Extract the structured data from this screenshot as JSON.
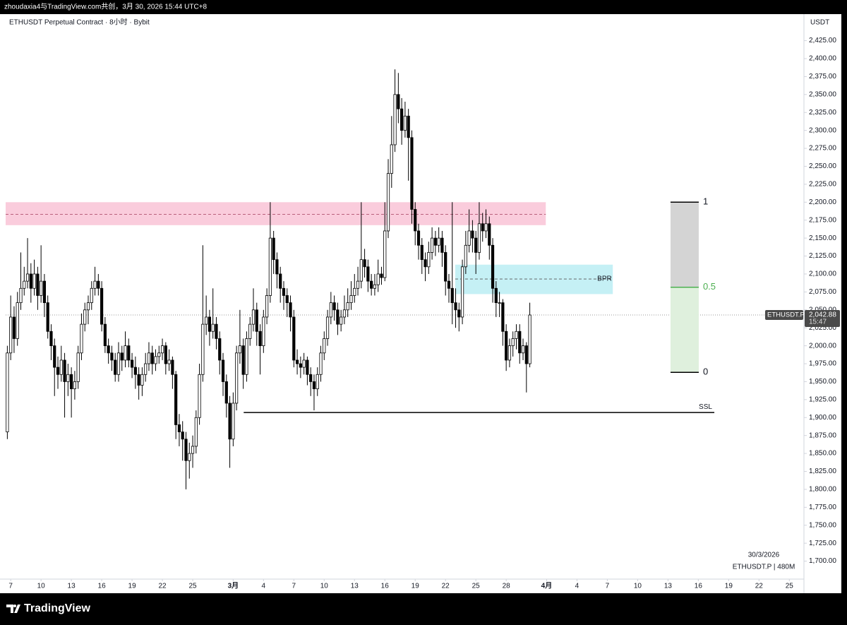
{
  "header": {
    "caption": "zhoudaxia4与TradingView.com共创，3月 30, 2026 15:44 UTC+8",
    "symbol_line": "ETHUSDT Perpetual Contract · 8小时 · Bybit",
    "currency": "USDT"
  },
  "footer": {
    "date": "30/3/2026",
    "info": "ETHUSDT.P | 480M",
    "brand": "TradingView"
  },
  "chart_data": {
    "type": "candlestick",
    "up_color": "#ffffff",
    "down_color": "#000000",
    "border_color": "#000000",
    "ylim": [
      1675,
      2460
    ],
    "xlim": [
      -12,
      1881
    ],
    "yticks": [
      {
        "value": 2425,
        "label": "2,425.00"
      },
      {
        "value": 2400,
        "label": "2,400.00"
      },
      {
        "value": 2375,
        "label": "2,375.00"
      },
      {
        "value": 2350,
        "label": "2,350.00"
      },
      {
        "value": 2325,
        "label": "2,325.00"
      },
      {
        "value": 2300,
        "label": "2,300.00"
      },
      {
        "value": 2275,
        "label": "2,275.00"
      },
      {
        "value": 2250,
        "label": "2,250.00"
      },
      {
        "value": 2225,
        "label": "2,225.00"
      },
      {
        "value": 2200,
        "label": "2,200.00"
      },
      {
        "value": 2175,
        "label": "2,175.00"
      },
      {
        "value": 2150,
        "label": "2,150.00"
      },
      {
        "value": 2125,
        "label": "2,125.00"
      },
      {
        "value": 2100,
        "label": "2,100.00"
      },
      {
        "value": 2075,
        "label": "2,075.00"
      },
      {
        "value": 2050,
        "label": "2,050.00"
      },
      {
        "value": 2025,
        "label": "2,025.00"
      },
      {
        "value": 2000,
        "label": "2,000.00"
      },
      {
        "value": 1975,
        "label": "1,975.00"
      },
      {
        "value": 1950,
        "label": "1,950.00"
      },
      {
        "value": 1925,
        "label": "1,925.00"
      },
      {
        "value": 1900,
        "label": "1,900.00"
      },
      {
        "value": 1875,
        "label": "1,875.00"
      },
      {
        "value": 1850,
        "label": "1,850.00"
      },
      {
        "value": 1825,
        "label": "1,825.00"
      },
      {
        "value": 1800,
        "label": "1,800.00"
      },
      {
        "value": 1775,
        "label": "1,775.00"
      },
      {
        "value": 1750,
        "label": "1,750.00"
      },
      {
        "value": 1725,
        "label": "1,725.00"
      },
      {
        "value": 1700,
        "label": "1,700.00"
      }
    ],
    "xticks": [
      {
        "value": 0,
        "label": "7"
      },
      {
        "value": 72,
        "label": "10"
      },
      {
        "value": 144,
        "label": "13"
      },
      {
        "value": 216,
        "label": "16"
      },
      {
        "value": 288,
        "label": "19"
      },
      {
        "value": 360,
        "label": "22"
      },
      {
        "value": 432,
        "label": "25"
      },
      {
        "value": 528,
        "label": "3月",
        "bold": true
      },
      {
        "value": 600,
        "label": "4"
      },
      {
        "value": 672,
        "label": "7"
      },
      {
        "value": 744,
        "label": "10"
      },
      {
        "value": 816,
        "label": "13"
      },
      {
        "value": 888,
        "label": "16"
      },
      {
        "value": 960,
        "label": "19"
      },
      {
        "value": 1032,
        "label": "22"
      },
      {
        "value": 1104,
        "label": "25"
      },
      {
        "value": 1176,
        "label": "28"
      },
      {
        "value": 1272,
        "label": "4月",
        "bold": true
      },
      {
        "value": 1344,
        "label": "4"
      },
      {
        "value": 1416,
        "label": "7"
      },
      {
        "value": 1488,
        "label": "10"
      },
      {
        "value": 1560,
        "label": "13"
      },
      {
        "value": 1632,
        "label": "16"
      },
      {
        "value": 1704,
        "label": "19"
      },
      {
        "value": 1776,
        "label": "22"
      },
      {
        "value": 1848,
        "label": "25"
      }
    ],
    "x": [
      -8,
      0,
      8,
      16,
      24,
      32,
      40,
      48,
      56,
      64,
      72,
      80,
      88,
      96,
      104,
      112,
      120,
      128,
      136,
      144,
      152,
      160,
      168,
      176,
      184,
      192,
      200,
      208,
      216,
      224,
      232,
      240,
      248,
      256,
      264,
      272,
      280,
      288,
      296,
      304,
      312,
      320,
      328,
      336,
      344,
      352,
      360,
      368,
      376,
      384,
      392,
      400,
      408,
      416,
      424,
      432,
      440,
      448,
      456,
      464,
      472,
      480,
      488,
      496,
      504,
      512,
      520,
      528,
      536,
      544,
      552,
      560,
      568,
      576,
      584,
      592,
      600,
      608,
      616,
      624,
      632,
      640,
      648,
      656,
      664,
      672,
      680,
      688,
      696,
      704,
      712,
      720,
      728,
      736,
      744,
      752,
      760,
      768,
      776,
      784,
      792,
      800,
      808,
      816,
      824,
      832,
      840,
      848,
      856,
      864,
      872,
      880,
      888,
      896,
      904,
      912,
      920,
      928,
      936,
      944,
      952,
      960,
      968,
      976,
      984,
      992,
      1000,
      1008,
      1016,
      1024,
      1032,
      1040,
      1048,
      1056,
      1064,
      1072,
      1080,
      1088,
      1096,
      1104,
      1112,
      1120,
      1128,
      1136,
      1144,
      1152,
      1160,
      1168,
      1176,
      1184,
      1192,
      1200,
      1208,
      1216,
      1224,
      1232
    ],
    "ohlc": [
      [
        1880,
        2000,
        1870,
        1990
      ],
      [
        1990,
        2070,
        1980,
        2040
      ],
      [
        2040,
        2055,
        1990,
        2010
      ],
      [
        2010,
        2075,
        2000,
        2060
      ],
      [
        2060,
        2130,
        2050,
        2080
      ],
      [
        2080,
        2110,
        2070,
        2090
      ],
      [
        2090,
        2150,
        2080,
        2100
      ],
      [
        2100,
        2115,
        2060,
        2080
      ],
      [
        2080,
        2120,
        2070,
        2100
      ],
      [
        2100,
        2110,
        2050,
        2070
      ],
      [
        2070,
        2140,
        2060,
        2090
      ],
      [
        2090,
        2100,
        2040,
        2060
      ],
      [
        2060,
        2070,
        2010,
        2020
      ],
      [
        2020,
        2030,
        1980,
        2000
      ],
      [
        2000,
        2010,
        1930,
        1970
      ],
      [
        1970,
        1985,
        1940,
        1960
      ],
      [
        1960,
        2000,
        1950,
        1980
      ],
      [
        1980,
        1990,
        1900,
        1950
      ],
      [
        1950,
        1975,
        1930,
        1960
      ],
      [
        1960,
        1970,
        1900,
        1940
      ],
      [
        1940,
        1965,
        1925,
        1950
      ],
      [
        1950,
        2000,
        1940,
        1990
      ],
      [
        1990,
        2045,
        1980,
        2030
      ],
      [
        2030,
        2060,
        2020,
        2050
      ],
      [
        2050,
        2070,
        2030,
        2060
      ],
      [
        2060,
        2090,
        2050,
        2080
      ],
      [
        2080,
        2110,
        2070,
        2090
      ],
      [
        2090,
        2100,
        2070,
        2080
      ],
      [
        2080,
        2090,
        2020,
        2030
      ],
      [
        2030,
        2040,
        1990,
        2000
      ],
      [
        2000,
        2010,
        1975,
        1990
      ],
      [
        1990,
        2000,
        1965,
        1980
      ],
      [
        1980,
        1990,
        1950,
        1960
      ],
      [
        1960,
        2005,
        1950,
        1990
      ],
      [
        1990,
        2000,
        1965,
        1980
      ],
      [
        1980,
        2020,
        1970,
        2000
      ],
      [
        2000,
        2010,
        1970,
        1980
      ],
      [
        1980,
        1990,
        1955,
        1970
      ],
      [
        1970,
        1985,
        1940,
        1960
      ],
      [
        1960,
        1970,
        1925,
        1945
      ],
      [
        1945,
        1970,
        1930,
        1960
      ],
      [
        1960,
        1990,
        1950,
        1975
      ],
      [
        1975,
        2005,
        1965,
        1990
      ],
      [
        1990,
        2000,
        1960,
        1975
      ],
      [
        1975,
        1995,
        1965,
        1985
      ],
      [
        1985,
        2000,
        1975,
        1990
      ],
      [
        1990,
        2010,
        1980,
        2000
      ],
      [
        2000,
        2005,
        1960,
        1975
      ],
      [
        1975,
        1995,
        1965,
        1980
      ],
      [
        1980,
        1985,
        1940,
        1960
      ],
      [
        1960,
        1965,
        1870,
        1890
      ],
      [
        1890,
        1905,
        1860,
        1880
      ],
      [
        1880,
        1895,
        1840,
        1870
      ],
      [
        1870,
        1880,
        1800,
        1840
      ],
      [
        1840,
        1865,
        1815,
        1850
      ],
      [
        1850,
        1875,
        1830,
        1860
      ],
      [
        1860,
        1910,
        1850,
        1900
      ],
      [
        1900,
        1975,
        1890,
        1960
      ],
      [
        1960,
        2140,
        1950,
        2030
      ],
      [
        2030,
        2070,
        2015,
        2040
      ],
      [
        2040,
        2050,
        2000,
        2020
      ],
      [
        2020,
        2080,
        2010,
        2030
      ],
      [
        2030,
        2040,
        1995,
        2010
      ],
      [
        2010,
        2020,
        1960,
        1980
      ],
      [
        1980,
        1990,
        1930,
        1950
      ],
      [
        1950,
        1960,
        1900,
        1920
      ],
      [
        1920,
        1930,
        1830,
        1870
      ],
      [
        1870,
        1935,
        1860,
        1920
      ],
      [
        1920,
        2000,
        1910,
        1990
      ],
      [
        1990,
        2050,
        1975,
        2000
      ],
      [
        2000,
        2010,
        1940,
        1960
      ],
      [
        1960,
        2020,
        1950,
        2010
      ],
      [
        2010,
        2040,
        2000,
        2030
      ],
      [
        2030,
        2080,
        2020,
        2050
      ],
      [
        2050,
        2060,
        2000,
        2020
      ],
      [
        2020,
        2030,
        1960,
        2000
      ],
      [
        2000,
        2050,
        1990,
        2040
      ],
      [
        2040,
        2080,
        2030,
        2070
      ],
      [
        2070,
        2200,
        2060,
        2150
      ],
      [
        2150,
        2160,
        2100,
        2120
      ],
      [
        2120,
        2130,
        2080,
        2100
      ],
      [
        2100,
        2110,
        2060,
        2080
      ],
      [
        2080,
        2090,
        2050,
        2070
      ],
      [
        2070,
        2080,
        2040,
        2060
      ],
      [
        2060,
        2070,
        2020,
        2040
      ],
      [
        2040,
        2050,
        1970,
        1980
      ],
      [
        1980,
        1995,
        1960,
        1975
      ],
      [
        1975,
        1985,
        1955,
        1970
      ],
      [
        1970,
        1990,
        1960,
        1980
      ],
      [
        1980,
        1985,
        1945,
        1960
      ],
      [
        1960,
        1970,
        1930,
        1950
      ],
      [
        1950,
        1960,
        1910,
        1940
      ],
      [
        1940,
        1970,
        1930,
        1960
      ],
      [
        1960,
        2000,
        1950,
        1990
      ],
      [
        1990,
        2020,
        1980,
        2010
      ],
      [
        2010,
        2050,
        2000,
        2040
      ],
      [
        2040,
        2075,
        2030,
        2060
      ],
      [
        2060,
        2070,
        2035,
        2050
      ],
      [
        2050,
        2060,
        2015,
        2030
      ],
      [
        2030,
        2050,
        2020,
        2040
      ],
      [
        2040,
        2070,
        2030,
        2050
      ],
      [
        2050,
        2080,
        2040,
        2060
      ],
      [
        2060,
        2090,
        2050,
        2070
      ],
      [
        2070,
        2100,
        2060,
        2080
      ],
      [
        2080,
        2110,
        2070,
        2090
      ],
      [
        2090,
        2200,
        2080,
        2120
      ],
      [
        2120,
        2135,
        2095,
        2110
      ],
      [
        2110,
        2120,
        2075,
        2090
      ],
      [
        2090,
        2100,
        2070,
        2080
      ],
      [
        2080,
        2100,
        2070,
        2085
      ],
      [
        2085,
        2120,
        2075,
        2100
      ],
      [
        2100,
        2110,
        2085,
        2095
      ],
      [
        2095,
        2200,
        2090,
        2160
      ],
      [
        2160,
        2260,
        2150,
        2240
      ],
      [
        2240,
        2320,
        2220,
        2280
      ],
      [
        2280,
        2385,
        2270,
        2350
      ],
      [
        2350,
        2380,
        2310,
        2330
      ],
      [
        2330,
        2345,
        2280,
        2300
      ],
      [
        2300,
        2340,
        2290,
        2320
      ],
      [
        2320,
        2330,
        2230,
        2290
      ],
      [
        2290,
        2300,
        2170,
        2190
      ],
      [
        2190,
        2200,
        2140,
        2160
      ],
      [
        2160,
        2170,
        2120,
        2140
      ],
      [
        2140,
        2150,
        2100,
        2120
      ],
      [
        2120,
        2130,
        2090,
        2110
      ],
      [
        2110,
        2145,
        2100,
        2130
      ],
      [
        2130,
        2165,
        2120,
        2150
      ],
      [
        2150,
        2160,
        2125,
        2140
      ],
      [
        2140,
        2165,
        2130,
        2150
      ],
      [
        2150,
        2160,
        2110,
        2130
      ],
      [
        2130,
        2140,
        2070,
        2090
      ],
      [
        2090,
        2100,
        2060,
        2080
      ],
      [
        2080,
        2200,
        2030,
        2060
      ],
      [
        2060,
        2080,
        2025,
        2050
      ],
      [
        2050,
        2060,
        2020,
        2040
      ],
      [
        2040,
        2120,
        2030,
        2110
      ],
      [
        2110,
        2160,
        2100,
        2140
      ],
      [
        2140,
        2190,
        2130,
        2160
      ],
      [
        2160,
        2175,
        2130,
        2150
      ],
      [
        2150,
        2160,
        2100,
        2130
      ],
      [
        2130,
        2200,
        2120,
        2170
      ],
      [
        2170,
        2185,
        2145,
        2160
      ],
      [
        2160,
        2190,
        2150,
        2170
      ],
      [
        2170,
        2180,
        2120,
        2140
      ],
      [
        2140,
        2150,
        2060,
        2080
      ],
      [
        2080,
        2090,
        2040,
        2060
      ],
      [
        2060,
        2075,
        2040,
        2060
      ],
      [
        2060,
        2065,
        2000,
        2020
      ],
      [
        2020,
        2030,
        1965,
        1980
      ],
      [
        1980,
        2010,
        1970,
        2000
      ],
      [
        2000,
        2020,
        1985,
        2010
      ],
      [
        2010,
        2030,
        1995,
        2020
      ],
      [
        2020,
        2030,
        1975,
        1990
      ],
      [
        1990,
        2010,
        1980,
        2000
      ],
      [
        2000,
        2005,
        1935,
        1975
      ],
      [
        1975,
        2060,
        1970,
        2042.88
      ]
    ],
    "zones": [
      {
        "y": [
          2168,
          2200
        ],
        "mid": 2183,
        "x": [
          -12,
          1270
        ],
        "color": "#f8bbd0",
        "mid_color": "#b0506e"
      },
      {
        "label": "BPR",
        "y": [
          2072,
          2113
        ],
        "mid": 2093,
        "x": [
          1055,
          1429
        ],
        "color": "#b2ebf2",
        "mid_color": "#555555"
      }
    ],
    "lines": [
      {
        "label": "SSL",
        "y": 1907,
        "x": [
          553,
          1670
        ],
        "color": "#000000"
      }
    ],
    "fib": {
      "x": [
        1566,
        1633
      ],
      "levels": [
        {
          "value": 2200,
          "label": "1"
        },
        {
          "value": 2081.5,
          "label": "0.5"
        },
        {
          "value": 1963,
          "label": "0"
        }
      ],
      "upper_fill": "#d4d4d4",
      "lower_fill": "#dff0dd",
      "mid_color": "#4caf50"
    },
    "last_price": {
      "value": 2042.88,
      "label": "2,042.88",
      "time": "15:47",
      "symbol": "ETHUSDT.P"
    }
  }
}
